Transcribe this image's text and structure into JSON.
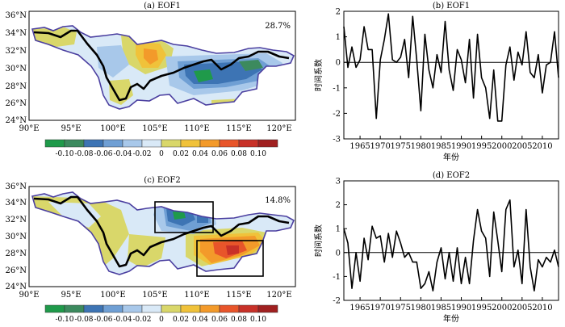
{
  "maps": [
    {
      "title": "(a) EOF1",
      "variance": "28.7%",
      "lat_ticks": [
        "24°N",
        "26°N",
        "28°N",
        "30°N",
        "32°N",
        "34°N",
        "36°N"
      ],
      "lon_ticks": [
        "90°E",
        "95°E",
        "100°E",
        "105°E",
        "110°E",
        "115°E",
        "120°E"
      ],
      "colorbar_labels": [
        "-0.10",
        "-0.08",
        "-0.06",
        "-0.04",
        "-0.02",
        "0",
        "0.02",
        "0.04",
        "0.06",
        "0.08",
        "0.10"
      ]
    },
    {
      "title": "(c) EOF2",
      "variance": "14.8%",
      "lat_ticks": [
        "24°N",
        "26°N",
        "28°N",
        "30°N",
        "32°N",
        "34°N",
        "36°N"
      ],
      "lon_ticks": [
        "90°E",
        "95°E",
        "100°E",
        "105°E",
        "110°E",
        "115°E",
        "120°E"
      ],
      "colorbar_labels": [
        "-0.10",
        "-0.08",
        "-0.06",
        "-0.04",
        "-0.02",
        "0",
        "0.02",
        "0.04",
        "0.06",
        "0.08",
        "0.10"
      ]
    }
  ],
  "colorbar_colors": [
    "#1f9a4a",
    "#3c8a5e",
    "#3d74b4",
    "#6f9fd4",
    "#a8c8ea",
    "#d9e9f7",
    "#d9d76a",
    "#f0c23a",
    "#f39a2a",
    "#e8552a",
    "#c83128",
    "#a02020"
  ],
  "chart_data": [
    {
      "type": "line",
      "title": "(b) EOF1",
      "xlabel": "年份",
      "ylabel": "时间系数",
      "xlim": [
        1961,
        2014
      ],
      "ylim": [
        -3,
        2
      ],
      "x_ticks": [
        "1965",
        "1970",
        "1975",
        "1980",
        "1985",
        "1990",
        "1995",
        "2000",
        "2005",
        "2010"
      ],
      "y_ticks": [
        "-3",
        "-2",
        "-1",
        "0",
        "1",
        "2"
      ],
      "x": [
        1961,
        1962,
        1963,
        1964,
        1965,
        1966,
        1967,
        1968,
        1969,
        1970,
        1971,
        1972,
        1973,
        1974,
        1975,
        1976,
        1977,
        1978,
        1979,
        1980,
        1981,
        1982,
        1983,
        1984,
        1985,
        1986,
        1987,
        1988,
        1989,
        1990,
        1991,
        1992,
        1993,
        1994,
        1995,
        1996,
        1997,
        1998,
        1999,
        2000,
        2001,
        2002,
        2003,
        2004,
        2005,
        2006,
        2007,
        2008,
        2009,
        2010,
        2011,
        2012,
        2013,
        2014
      ],
      "values": [
        1.4,
        -0.2,
        0.6,
        -0.2,
        0.1,
        1.4,
        0.5,
        0.5,
        -2.2,
        0.1,
        0.9,
        1.9,
        0.1,
        0.0,
        0.2,
        0.9,
        -0.6,
        1.8,
        0.1,
        -1.9,
        1.1,
        -0.3,
        -1.0,
        0.3,
        -0.4,
        1.6,
        -0.3,
        -1.1,
        0.5,
        0.1,
        -0.8,
        0.9,
        -1.4,
        1.1,
        -0.6,
        -1.0,
        -2.2,
        -0.3,
        -2.3,
        -2.3,
        -0.1,
        0.6,
        -0.7,
        0.4,
        -0.1,
        1.2,
        -0.4,
        -0.6,
        0.3,
        -1.2,
        -0.1,
        0.0,
        1.2,
        -0.6
      ]
    },
    {
      "type": "line",
      "title": "(d) EOF2",
      "xlabel": "年份",
      "ylabel": "时间系数",
      "xlim": [
        1961,
        2014
      ],
      "ylim": [
        -2,
        3
      ],
      "x_ticks": [
        "1965",
        "1970",
        "1975",
        "1980",
        "1985",
        "1990",
        "1995",
        "2000",
        "2005",
        "2010"
      ],
      "y_ticks": [
        "-2",
        "-1",
        "0",
        "1",
        "2",
        "3"
      ],
      "x": [
        1961,
        1962,
        1963,
        1964,
        1965,
        1966,
        1967,
        1968,
        1969,
        1970,
        1971,
        1972,
        1973,
        1974,
        1975,
        1976,
        1977,
        1978,
        1979,
        1980,
        1981,
        1982,
        1983,
        1984,
        1985,
        1986,
        1987,
        1988,
        1989,
        1990,
        1991,
        1992,
        1993,
        1994,
        1995,
        1996,
        1997,
        1998,
        1999,
        2000,
        2001,
        2002,
        2003,
        2004,
        2005,
        2006,
        2007,
        2008,
        2009,
        2010,
        2011,
        2012,
        2013,
        2014
      ],
      "values": [
        1.0,
        0.4,
        -1.5,
        0.0,
        -1.2,
        0.6,
        -0.3,
        1.1,
        0.6,
        0.7,
        -0.4,
        0.8,
        -0.2,
        0.9,
        0.4,
        -0.2,
        0.0,
        -0.4,
        -0.4,
        -1.5,
        -1.3,
        -0.8,
        -1.6,
        -0.4,
        0.2,
        -1.1,
        0.0,
        -1.2,
        0.2,
        -1.3,
        -0.2,
        -1.3,
        0.5,
        1.8,
        0.9,
        0.6,
        -1.0,
        1.7,
        0.5,
        -0.8,
        1.8,
        2.2,
        -0.6,
        0.1,
        -1.3,
        1.8,
        -0.6,
        -1.6,
        -0.3,
        -0.6,
        -0.2,
        -0.4,
        0.1,
        -0.6
      ]
    }
  ]
}
